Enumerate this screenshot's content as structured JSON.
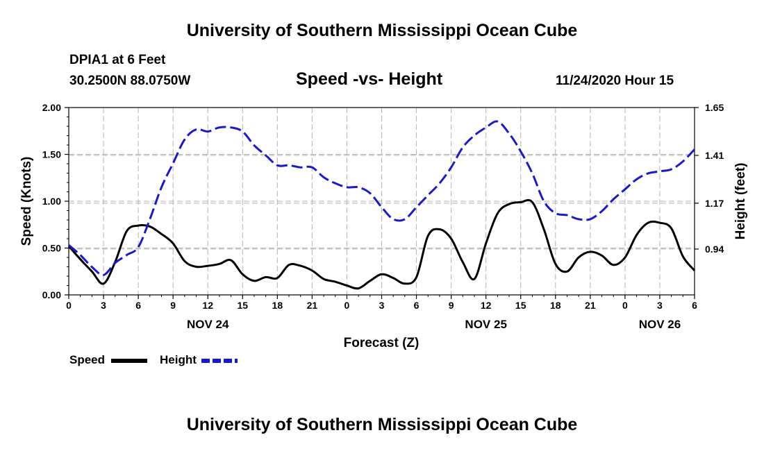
{
  "header": {
    "title": "University of Southern Mississippi Ocean Cube"
  },
  "station": {
    "name": "DPIA1 at 6 Feet",
    "coords": "30.2500N 88.0750W"
  },
  "forecast_time": "11/24/2020 Hour 15",
  "footer": {
    "title": "University of Southern Mississippi Ocean Cube"
  },
  "colors": {
    "speed": "#000000",
    "height": "#1a1acc",
    "grid": "#b4b4b4",
    "axis": "#000000"
  },
  "chart_data": {
    "type": "line",
    "title": "Speed -vs- Height",
    "xlabel": "Forecast (Z)",
    "ylabel": "Speed (Knots)",
    "y2label": "Height (feet)",
    "xlim": [
      0,
      54
    ],
    "ylim": [
      0,
      2.0
    ],
    "y2lim": [
      0.71,
      1.65
    ],
    "x_ticks": [
      0,
      3,
      6,
      9,
      12,
      15,
      18,
      21,
      24,
      27,
      30,
      33,
      36,
      39,
      42,
      45,
      48,
      51,
      54
    ],
    "x_tick_labels": [
      "0",
      "3",
      "6",
      "9",
      "12",
      "15",
      "18",
      "21",
      "0",
      "3",
      "6",
      "9",
      "12",
      "15",
      "18",
      "21",
      "0",
      "3",
      "6"
    ],
    "date_labels": [
      {
        "x": 12,
        "label": "NOV 24"
      },
      {
        "x": 36,
        "label": "NOV 25"
      },
      {
        "x": 51,
        "label": "NOV 26"
      }
    ],
    "y_ticks": [
      0,
      0.5,
      1.0,
      1.5,
      2.0
    ],
    "y_tick_labels": [
      "0.00",
      "0.50",
      "1.00",
      "1.50",
      "2.00"
    ],
    "y2_ticks": [
      0.94,
      1.17,
      1.41,
      1.65
    ],
    "y2_tick_labels": [
      "0.94",
      "1.17",
      "1.41",
      "1.65"
    ],
    "series": [
      {
        "name": "Speed",
        "axis": "left",
        "style": "solid",
        "x": [
          0,
          1,
          2,
          3,
          4,
          5,
          6,
          7,
          8,
          9,
          10,
          11,
          12,
          13,
          14,
          15,
          16,
          17,
          18,
          19,
          20,
          21,
          22,
          23,
          24,
          25,
          26,
          27,
          28,
          29,
          30,
          31,
          32,
          33,
          34,
          35,
          36,
          37,
          38,
          39,
          40,
          41,
          42,
          43,
          44,
          45,
          46,
          47,
          48,
          49,
          50,
          51,
          52,
          53,
          54
        ],
        "values": [
          0.52,
          0.38,
          0.25,
          0.12,
          0.35,
          0.68,
          0.74,
          0.73,
          0.65,
          0.55,
          0.36,
          0.3,
          0.31,
          0.33,
          0.37,
          0.22,
          0.15,
          0.19,
          0.18,
          0.32,
          0.31,
          0.26,
          0.17,
          0.14,
          0.1,
          0.07,
          0.15,
          0.22,
          0.18,
          0.12,
          0.19,
          0.63,
          0.7,
          0.6,
          0.35,
          0.17,
          0.55,
          0.87,
          0.97,
          0.99,
          0.99,
          0.7,
          0.33,
          0.25,
          0.4,
          0.46,
          0.42,
          0.32,
          0.4,
          0.64,
          0.77,
          0.77,
          0.71,
          0.41,
          0.26
        ]
      },
      {
        "name": "Height",
        "axis": "right",
        "style": "dashed",
        "x": [
          0,
          1,
          2,
          3,
          4,
          5,
          6,
          7,
          8,
          9,
          10,
          11,
          12,
          13,
          14,
          15,
          16,
          17,
          18,
          19,
          20,
          21,
          22,
          23,
          24,
          25,
          26,
          27,
          28,
          29,
          30,
          31,
          32,
          33,
          34,
          35,
          36,
          37,
          38,
          39,
          40,
          41,
          42,
          43,
          44,
          45,
          46,
          47,
          48,
          49,
          50,
          51,
          52,
          53,
          54
        ],
        "values": [
          0.96,
          0.91,
          0.85,
          0.81,
          0.87,
          0.91,
          0.95,
          1.09,
          1.25,
          1.37,
          1.49,
          1.54,
          1.53,
          1.55,
          1.55,
          1.53,
          1.46,
          1.41,
          1.36,
          1.36,
          1.35,
          1.35,
          1.3,
          1.27,
          1.25,
          1.25,
          1.22,
          1.15,
          1.09,
          1.09,
          1.15,
          1.21,
          1.27,
          1.35,
          1.45,
          1.51,
          1.55,
          1.58,
          1.52,
          1.43,
          1.32,
          1.18,
          1.12,
          1.11,
          1.09,
          1.09,
          1.13,
          1.19,
          1.24,
          1.29,
          1.32,
          1.33,
          1.34,
          1.38,
          1.44
        ]
      }
    ],
    "legend": [
      {
        "label": "Speed",
        "style": "solid"
      },
      {
        "label": "Height",
        "style": "dashed"
      }
    ]
  }
}
